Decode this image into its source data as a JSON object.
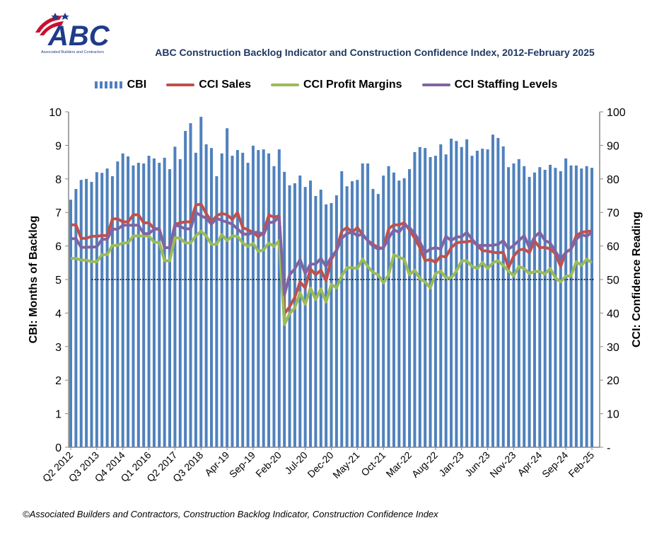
{
  "logo": {
    "name": "ABC",
    "subtitle": "Associated Builders and Contractors"
  },
  "title": "ABC Construction Backlog Indicator and Construction Confidence Index, 2012-February 2025",
  "footnote": "©Associated Builders and Contractors, Construction Backlog Indicator, Construction Confidence Index",
  "legend": [
    {
      "label": "CBI",
      "kind": "bar",
      "color": "#4f81bd"
    },
    {
      "label": "CCI Sales",
      "kind": "line",
      "color": "#c0504d"
    },
    {
      "label": "CCI Profit Margins",
      "kind": "line",
      "color": "#9bbb59"
    },
    {
      "label": "CCI Staffing Levels",
      "kind": "line",
      "color": "#8064a2"
    }
  ],
  "chart_data": {
    "type": "bar+line",
    "title": "ABC Construction Backlog Indicator and Construction Confidence Index, 2012-February 2025",
    "ylabel": "CBI: Months of Backlog",
    "y2label": "CCI: Confidence Reading",
    "ylim": [
      0,
      10
    ],
    "y2lim": [
      0,
      100
    ],
    "yticks": [
      "0",
      "1",
      "2",
      "3",
      "4",
      "5",
      "6",
      "7",
      "8",
      "9",
      "10"
    ],
    "y2ticks": [
      "-",
      "10",
      "20",
      "30",
      "40",
      "50",
      "60",
      "70",
      "80",
      "90",
      "100"
    ],
    "reference_line": {
      "axis": "y2",
      "value": 50,
      "style": "dotted"
    },
    "x_tick_labels": [
      "Q2 2012",
      "Q3 2013",
      "Q4 2014",
      "Q1 2016",
      "Q2 2017",
      "Q3 2018",
      "Apr-19",
      "Sep-19",
      "Feb-20",
      "Jul-20",
      "Dec-20",
      "May-21",
      "Oct-21",
      "Mar-22",
      "Aug-22",
      "Jan-23",
      "Jun-23",
      "Nov-23",
      "Apr-24",
      "Sep-24",
      "Feb-25"
    ],
    "x_tick_every": 5,
    "grid": false,
    "legend_position": "top",
    "series": [
      {
        "name": "CBI",
        "type": "bar",
        "axis": "y",
        "color": "#4f81bd",
        "values": [
          7.38,
          7.7,
          7.97,
          8.0,
          7.91,
          8.2,
          8.18,
          8.31,
          8.08,
          8.52,
          8.76,
          8.67,
          8.4,
          8.48,
          8.46,
          8.69,
          8.61,
          8.48,
          8.63,
          8.29,
          8.96,
          8.59,
          9.43,
          9.66,
          8.78,
          9.85,
          9.03,
          8.92,
          8.08,
          8.76,
          9.51,
          8.69,
          8.86,
          8.78,
          8.48,
          8.99,
          8.86,
          8.88,
          8.76,
          8.38,
          8.88,
          8.21,
          7.81,
          7.87,
          8.1,
          7.76,
          7.95,
          7.49,
          7.68,
          7.24,
          7.28,
          7.51,
          8.23,
          7.78,
          7.93,
          7.97,
          8.46,
          8.46,
          7.7,
          7.55,
          8.1,
          8.38,
          8.19,
          7.95,
          8.02,
          8.29,
          8.8,
          8.95,
          8.92,
          8.65,
          8.69,
          9.03,
          8.73,
          9.2,
          9.13,
          8.95,
          9.18,
          8.69,
          8.84,
          8.9,
          8.88,
          9.32,
          9.22,
          8.97,
          8.35,
          8.46,
          8.59,
          8.38,
          8.06,
          8.19,
          8.35,
          8.27,
          8.42,
          8.33,
          8.23,
          8.61,
          8.4,
          8.4,
          8.31,
          8.38,
          8.33
        ]
      },
      {
        "name": "CCI Sales",
        "type": "line",
        "axis": "y2",
        "color": "#c0504d",
        "values": [
          66.3,
          66.3,
          62.3,
          62.3,
          62.9,
          62.9,
          63.1,
          63.1,
          68.1,
          68.1,
          67.2,
          67.2,
          69.3,
          69.3,
          66.9,
          66.9,
          65.2,
          65.1,
          59.5,
          59.5,
          66.5,
          66.9,
          67.2,
          67.2,
          72.2,
          72.5,
          69.7,
          67.2,
          69.0,
          69.7,
          69.3,
          67.9,
          70.0,
          65.5,
          64.8,
          64.1,
          62.7,
          64.1,
          69.2,
          68.6,
          69.0,
          39.8,
          41.9,
          44.7,
          49.3,
          47.5,
          53.2,
          51.4,
          52.8,
          49.6,
          56.0,
          58.8,
          64.4,
          65.5,
          64.1,
          65.5,
          63.4,
          61.6,
          60.5,
          59.5,
          59.3,
          65.1,
          66.3,
          66.3,
          66.9,
          64.8,
          62.3,
          59.5,
          55.6,
          56.0,
          55.1,
          57.0,
          56.7,
          59.5,
          60.9,
          61.2,
          61.2,
          61.6,
          60.2,
          58.6,
          58.5,
          58.1,
          58.0,
          58.1,
          53.5,
          57.0,
          58.8,
          59.1,
          58.0,
          61.5,
          59.5,
          59.6,
          59.1,
          57.7,
          53.9,
          58.1,
          59.1,
          63.1,
          64.1,
          64.3,
          64.5
        ]
      },
      {
        "name": "CCI Profit Margins",
        "type": "line",
        "axis": "y2",
        "color": "#9bbb59",
        "values": [
          56.3,
          56.3,
          55.8,
          55.8,
          55.3,
          55.3,
          57.4,
          57.4,
          60.2,
          60.2,
          60.9,
          60.9,
          63.0,
          63.0,
          63.0,
          63.0,
          61.1,
          61.1,
          55.6,
          55.6,
          62.5,
          62.3,
          60.9,
          60.9,
          63.0,
          64.4,
          63.0,
          60.5,
          60.5,
          63.4,
          61.6,
          63.0,
          62.9,
          60.9,
          59.9,
          60.8,
          58.4,
          58.8,
          60.9,
          59.9,
          61.6,
          36.6,
          39.8,
          41.6,
          46.1,
          42.6,
          47.5,
          44.0,
          47.2,
          43.3,
          48.6,
          47.5,
          51.1,
          53.5,
          53.5,
          53.3,
          56.1,
          53.9,
          52.1,
          51.4,
          49.0,
          51.4,
          57.4,
          56.7,
          56.0,
          51.4,
          52.8,
          50.3,
          49.3,
          47.5,
          51.8,
          52.5,
          50.5,
          50.5,
          52.5,
          55.6,
          55.6,
          53.9,
          53.3,
          55.1,
          53.3,
          55.0,
          55.6,
          54.2,
          52.5,
          51.1,
          53.9,
          53.3,
          51.8,
          52.4,
          52.4,
          51.6,
          53.3,
          50.5,
          49.3,
          51.0,
          51.1,
          55.3,
          54.2,
          56.1,
          55.0
        ]
      },
      {
        "name": "CCI Staffing Levels",
        "type": "line",
        "axis": "y2",
        "color": "#8064a2",
        "values": [
          62.2,
          62.2,
          59.6,
          59.6,
          59.7,
          59.7,
          62.0,
          62.0,
          65.0,
          65.0,
          66.2,
          66.2,
          66.2,
          66.2,
          63.7,
          63.7,
          65.0,
          65.0,
          59.5,
          59.5,
          66.2,
          65.8,
          65.1,
          65.1,
          70.0,
          69.0,
          68.3,
          66.5,
          68.3,
          67.6,
          67.1,
          66.5,
          65.1,
          63.7,
          63.4,
          64.1,
          64.1,
          63.4,
          66.9,
          67.2,
          68.6,
          45.4,
          51.4,
          53.2,
          56.0,
          51.8,
          54.6,
          54.6,
          56.3,
          53.9,
          56.7,
          58.6,
          62.3,
          63.7,
          64.1,
          63.1,
          63.5,
          61.6,
          59.9,
          59.1,
          59.5,
          62.3,
          64.8,
          64.1,
          66.2,
          65.5,
          63.7,
          61.2,
          58.0,
          59.1,
          59.5,
          59.1,
          62.9,
          61.6,
          62.7,
          62.7,
          64.1,
          62.0,
          60.2,
          60.2,
          60.2,
          60.2,
          60.5,
          61.6,
          59.1,
          60.2,
          61.6,
          63.1,
          59.5,
          62.7,
          64.1,
          61.6,
          60.9,
          58.4,
          56.0,
          58.1,
          59.1,
          62.0,
          63.4,
          62.9,
          64.1
        ]
      }
    ]
  }
}
